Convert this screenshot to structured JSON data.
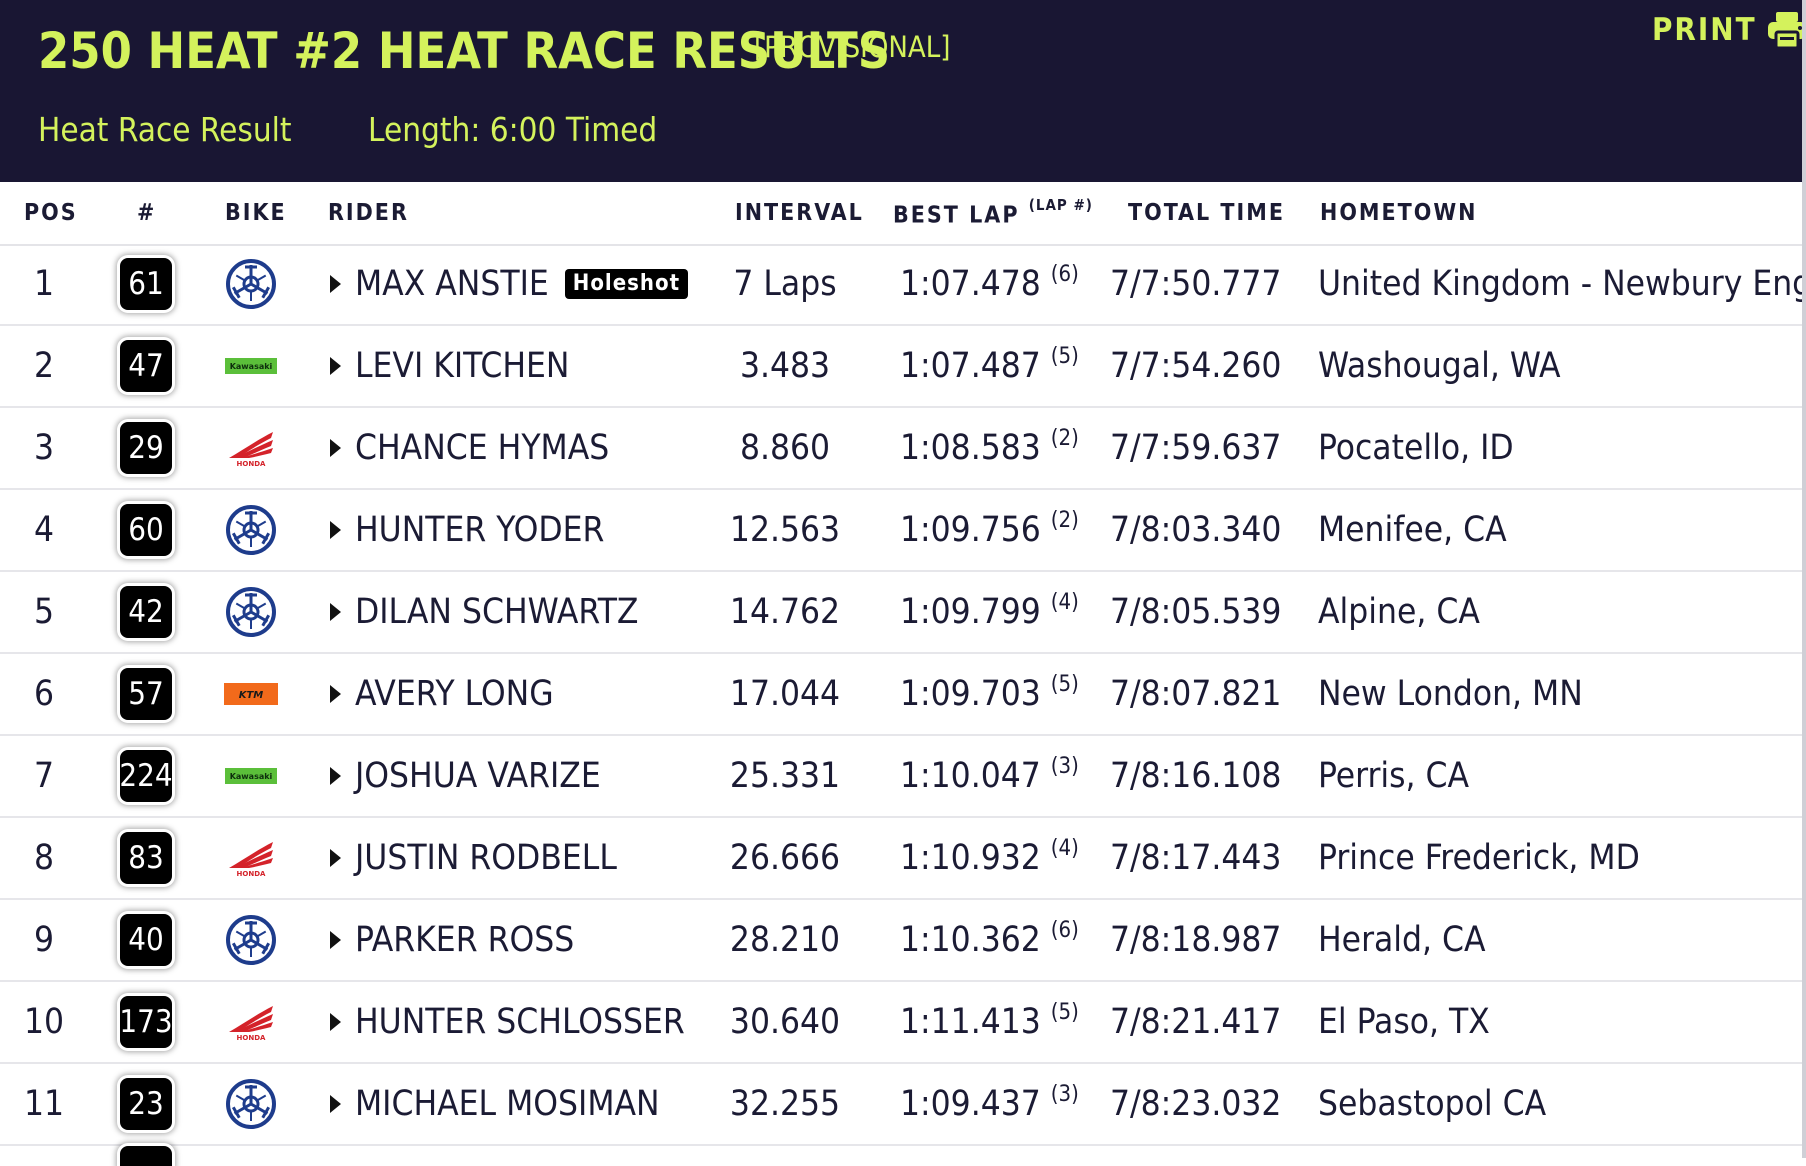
{
  "header": {
    "title": "250 HEAT #2 HEAT RACE RESULTS",
    "status": "[PROVISIONAL]",
    "result_type": "Heat Race Result",
    "length": "Length: 6:00 Timed",
    "print_label": "PRINT",
    "print_icon": "printer-icon"
  },
  "colors": {
    "header_bg": "#191633",
    "accent": "#d4f25c"
  },
  "columns": {
    "pos": "POS",
    "num": "#",
    "bike": "BIKE",
    "rider": "RIDER",
    "interval": "INTERVAL",
    "best_lap": "BEST LAP",
    "best_lap_sub": "(LAP #)",
    "total_time": "TOTAL TIME",
    "hometown": "HOMETOWN"
  },
  "rows": [
    {
      "pos": "1",
      "num": "61",
      "bike": "yamaha",
      "rider": "MAX ANSTIE",
      "badge": "Holeshot",
      "interval": "7 Laps",
      "best_lap": "1:07.478",
      "lap": "(6)",
      "total": "7/7:50.777",
      "hometown": "United Kingdom - Newbury England"
    },
    {
      "pos": "2",
      "num": "47",
      "bike": "kawasaki",
      "rider": "LEVI KITCHEN",
      "interval": "3.483",
      "best_lap": "1:07.487",
      "lap": "(5)",
      "total": "7/7:54.260",
      "hometown": "Washougal, WA"
    },
    {
      "pos": "3",
      "num": "29",
      "bike": "honda",
      "rider": "CHANCE HYMAS",
      "interval": "8.860",
      "best_lap": "1:08.583",
      "lap": "(2)",
      "total": "7/7:59.637",
      "hometown": "Pocatello, ID"
    },
    {
      "pos": "4",
      "num": "60",
      "bike": "yamaha",
      "rider": "HUNTER YODER",
      "interval": "12.563",
      "best_lap": "1:09.756",
      "lap": "(2)",
      "total": "7/8:03.340",
      "hometown": "Menifee, CA"
    },
    {
      "pos": "5",
      "num": "42",
      "bike": "yamaha",
      "rider": "DILAN SCHWARTZ",
      "interval": "14.762",
      "best_lap": "1:09.799",
      "lap": "(4)",
      "total": "7/8:05.539",
      "hometown": "Alpine, CA"
    },
    {
      "pos": "6",
      "num": "57",
      "bike": "ktm",
      "rider": "AVERY LONG",
      "interval": "17.044",
      "best_lap": "1:09.703",
      "lap": "(5)",
      "total": "7/8:07.821",
      "hometown": "New London, MN"
    },
    {
      "pos": "7",
      "num": "224",
      "bike": "kawasaki",
      "rider": "JOSHUA VARIZE",
      "interval": "25.331",
      "best_lap": "1:10.047",
      "lap": "(3)",
      "total": "7/8:16.108",
      "hometown": "Perris, CA"
    },
    {
      "pos": "8",
      "num": "83",
      "bike": "honda",
      "rider": "JUSTIN RODBELL",
      "interval": "26.666",
      "best_lap": "1:10.932",
      "lap": "(4)",
      "total": "7/8:17.443",
      "hometown": "Prince Frederick, MD"
    },
    {
      "pos": "9",
      "num": "40",
      "bike": "yamaha",
      "rider": "PARKER ROSS",
      "interval": "28.210",
      "best_lap": "1:10.362",
      "lap": "(6)",
      "total": "7/8:18.987",
      "hometown": "Herald, CA"
    },
    {
      "pos": "10",
      "num": "173",
      "bike": "honda",
      "rider": "HUNTER SCHLOSSER",
      "interval": "30.640",
      "best_lap": "1:11.413",
      "lap": "(5)",
      "total": "7/8:21.417",
      "hometown": "El Paso, TX"
    },
    {
      "pos": "11",
      "num": "23",
      "bike": "yamaha",
      "rider": "MICHAEL MOSIMAN",
      "interval": "32.255",
      "best_lap": "1:09.437",
      "lap": "(3)",
      "total": "7/8:23.032",
      "hometown": "Sebastopol CA"
    }
  ],
  "brand_text": {
    "kawasaki": "Kawasaki",
    "honda": "HONDA",
    "ktm": "KTM"
  }
}
